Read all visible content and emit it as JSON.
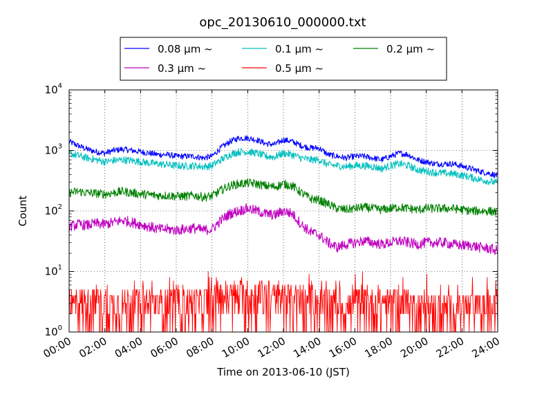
{
  "chart_data": {
    "type": "line",
    "title": "opc_20130610_000000.txt",
    "xlabel": "Time on 2013-06-10 (JST)",
    "ylabel": "Count",
    "x_unit": "hour",
    "xlim": [
      0,
      24
    ],
    "yscale": "log",
    "ylim": [
      1,
      10000
    ],
    "x_ticks": [
      "00:00",
      "02:00",
      "04:00",
      "06:00",
      "08:00",
      "10:00",
      "12:00",
      "14:00",
      "16:00",
      "18:00",
      "20:00",
      "22:00",
      "24:00"
    ],
    "y_ticks": [
      {
        "base": "10",
        "exp": "0",
        "value": 1
      },
      {
        "base": "10",
        "exp": "1",
        "value": 10
      },
      {
        "base": "10",
        "exp": "2",
        "value": 100
      },
      {
        "base": "10",
        "exp": "3",
        "value": 1000
      },
      {
        "base": "10",
        "exp": "4",
        "value": 10000
      }
    ],
    "grid": true,
    "legend_position": "top",
    "series": [
      {
        "name": "0.08 μm ~",
        "color": "#0000ff",
        "x": [
          0,
          0.5,
          1,
          1.5,
          2,
          2.5,
          3,
          3.5,
          4,
          4.5,
          5,
          5.5,
          6,
          6.5,
          7,
          7.5,
          8,
          8.5,
          9,
          9.5,
          10,
          10.5,
          11,
          11.5,
          12,
          12.5,
          13,
          13.5,
          14,
          14.5,
          15,
          15.5,
          16,
          16.5,
          17,
          17.5,
          18,
          18.5,
          19,
          19.5,
          20,
          20.5,
          21,
          21.5,
          22,
          22.5,
          23,
          23.5,
          24
        ],
        "y": [
          1400,
          1200,
          1050,
          950,
          900,
          1000,
          1050,
          1000,
          950,
          900,
          850,
          850,
          800,
          800,
          800,
          750,
          800,
          1100,
          1400,
          1600,
          1600,
          1500,
          1300,
          1250,
          1500,
          1400,
          1200,
          1100,
          1100,
          850,
          800,
          750,
          800,
          800,
          750,
          700,
          800,
          900,
          850,
          700,
          650,
          600,
          600,
          600,
          550,
          500,
          450,
          420,
          380
        ]
      },
      {
        "name": "0.1 μm ~",
        "color": "#00bfbf",
        "x": [
          0,
          0.5,
          1,
          1.5,
          2,
          2.5,
          3,
          3.5,
          4,
          4.5,
          5,
          5.5,
          6,
          6.5,
          7,
          7.5,
          8,
          8.5,
          9,
          9.5,
          10,
          10.5,
          11,
          11.5,
          12,
          12.5,
          13,
          13.5,
          14,
          14.5,
          15,
          15.5,
          16,
          16.5,
          17,
          17.5,
          18,
          18.5,
          19,
          19.5,
          20,
          20.5,
          21,
          21.5,
          22,
          22.5,
          23,
          23.5,
          24
        ],
        "y": [
          900,
          820,
          750,
          700,
          650,
          680,
          700,
          680,
          650,
          620,
          600,
          580,
          560,
          550,
          560,
          540,
          560,
          700,
          850,
          950,
          950,
          900,
          800,
          780,
          900,
          850,
          750,
          700,
          700,
          580,
          560,
          540,
          560,
          560,
          540,
          500,
          560,
          600,
          560,
          480,
          450,
          430,
          420,
          410,
          390,
          360,
          330,
          310,
          290
        ]
      },
      {
        "name": "0.2 μm ~",
        "color": "#008000",
        "x": [
          0,
          0.5,
          1,
          1.5,
          2,
          2.5,
          3,
          3.5,
          4,
          4.5,
          5,
          5.5,
          6,
          6.5,
          7,
          7.5,
          8,
          8.5,
          9,
          9.5,
          10,
          10.5,
          11,
          11.5,
          12,
          12.5,
          13,
          13.5,
          14,
          14.5,
          15,
          15.5,
          16,
          16.5,
          17,
          17.5,
          18,
          18.5,
          19,
          19.5,
          20,
          20.5,
          21,
          21.5,
          22,
          22.5,
          23,
          23.5,
          24
        ],
        "y": [
          200,
          210,
          200,
          195,
          190,
          200,
          210,
          200,
          190,
          185,
          180,
          180,
          175,
          175,
          180,
          170,
          175,
          220,
          260,
          280,
          290,
          280,
          260,
          250,
          280,
          260,
          200,
          160,
          150,
          130,
          110,
          105,
          110,
          115,
          110,
          105,
          110,
          115,
          110,
          105,
          110,
          110,
          110,
          110,
          105,
          100,
          100,
          100,
          95
        ]
      },
      {
        "name": "0.3 μm ~",
        "color": "#bf00bf",
        "x": [
          0,
          0.5,
          1,
          1.5,
          2,
          2.5,
          3,
          3.5,
          4,
          4.5,
          5,
          5.5,
          6,
          6.5,
          7,
          7.5,
          8,
          8.5,
          9,
          9.5,
          10,
          10.5,
          11,
          11.5,
          12,
          12.5,
          13,
          13.5,
          14,
          14.5,
          15,
          15.5,
          16,
          16.5,
          17,
          17.5,
          18,
          18.5,
          19,
          19.5,
          20,
          20.5,
          21,
          21.5,
          22,
          22.5,
          23,
          23.5,
          24
        ],
        "y": [
          55,
          60,
          58,
          62,
          60,
          65,
          70,
          65,
          60,
          55,
          50,
          50,
          48,
          50,
          52,
          48,
          50,
          70,
          90,
          100,
          110,
          100,
          90,
          85,
          100,
          90,
          60,
          45,
          40,
          30,
          25,
          28,
          30,
          32,
          30,
          28,
          30,
          32,
          30,
          28,
          30,
          30,
          30,
          28,
          27,
          27,
          25,
          24,
          22
        ]
      },
      {
        "name": "0.5 μm ~",
        "color": "#ff0000",
        "x": [
          0,
          0.5,
          1,
          1.5,
          2,
          2.5,
          3,
          3.5,
          4,
          4.5,
          5,
          5.5,
          6,
          6.5,
          7,
          7.5,
          8,
          8.5,
          9,
          9.5,
          10,
          10.5,
          11,
          11.5,
          12,
          12.5,
          13,
          13.5,
          14,
          14.5,
          15,
          15.5,
          16,
          16.5,
          17,
          17.5,
          18,
          18.5,
          19,
          19.5,
          20,
          20.5,
          21,
          21.5,
          22,
          22.5,
          23,
          23.5,
          24
        ],
        "y": [
          3,
          3,
          3,
          3,
          3,
          3,
          3,
          3,
          3,
          3,
          3,
          3,
          3,
          3,
          3,
          3,
          3.5,
          4,
          4,
          4,
          4,
          4,
          4,
          3.5,
          4,
          3.5,
          3,
          3,
          3,
          3,
          3,
          2.5,
          3,
          3,
          3,
          3,
          3,
          3,
          3,
          2.5,
          2.5,
          2.5,
          2.5,
          2.5,
          2.5,
          2.5,
          2.5,
          2.5,
          2.5
        ]
      }
    ]
  }
}
